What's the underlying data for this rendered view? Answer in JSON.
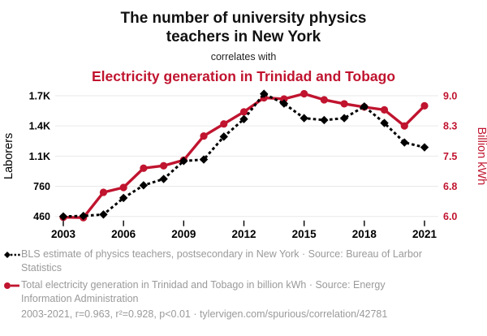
{
  "header": {
    "title": "The number of university physics teachers in New York",
    "connector": "correlates with",
    "subtitle": "Electricity generation in Trinidad and Tobago"
  },
  "chart_data": {
    "type": "line",
    "title": "The number of university physics teachers in New York correlates with Electricity generation in Trinidad and Tobago",
    "x": [
      2003,
      2004,
      2005,
      2006,
      2007,
      2008,
      2009,
      2010,
      2011,
      2012,
      2013,
      2014,
      2015,
      2016,
      2017,
      2018,
      2019,
      2020,
      2021
    ],
    "x_tick_labels": [
      "2003",
      "2006",
      "2009",
      "2012",
      "2015",
      "2018",
      "2021"
    ],
    "grid": true,
    "legend_position": "bottom-left",
    "left_axis": {
      "label": "Laborers",
      "tick_labels": [
        "1.7K",
        "1.4K",
        "1.1K",
        "760",
        "460"
      ],
      "range": [
        460,
        1700
      ]
    },
    "right_axis": {
      "label": "Billion kWh",
      "tick_labels": [
        "9.0",
        "8.3",
        "7.5",
        "6.8",
        "6.0"
      ],
      "range": [
        6.0,
        9.0
      ]
    },
    "series": [
      {
        "name": "BLS estimate of physics teachers, postsecondary in New York",
        "axis": "left",
        "color": "#000000",
        "style": "dashed-diamond",
        "values": [
          460,
          465,
          480,
          650,
          780,
          845,
          1030,
          1045,
          1280,
          1460,
          1720,
          1620,
          1470,
          1450,
          1470,
          1590,
          1420,
          1220,
          1170
        ]
      },
      {
        "name": "Total electricity generation in Trinidad and Tobago",
        "axis": "right",
        "color": "#c0142f",
        "style": "solid-circle",
        "values": [
          5.98,
          5.97,
          6.6,
          6.72,
          7.2,
          7.26,
          7.4,
          8.0,
          8.3,
          8.6,
          8.95,
          8.92,
          9.05,
          8.9,
          8.8,
          8.72,
          8.65,
          8.25,
          8.75
        ]
      }
    ]
  },
  "legend": {
    "items": [
      {
        "label": "BLS estimate of physics teachers, postsecondary in New York · Source: Bureau of Larbor Statistics"
      },
      {
        "label": "Total electricity generation in Trinidad and Tobago in billion kWh · Source: Energy Information Administration"
      }
    ]
  },
  "footer": {
    "stats": "2003-2021, r=0.963, r²=0.928, p<0.01 · tylervigen.com/spurious/correlation/42781"
  },
  "colors": {
    "accent_red": "#c0142f",
    "text_gray": "#9a9a9a",
    "grid_gray": "#e9e9e9"
  }
}
